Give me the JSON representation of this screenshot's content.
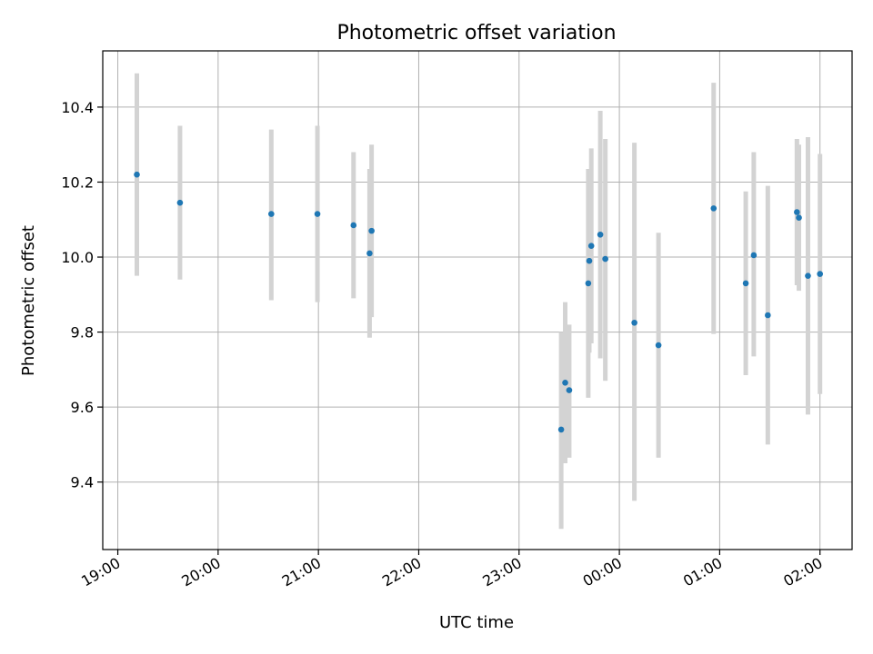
{
  "chart_data": {
    "type": "scatter",
    "title": "Photometric offset variation",
    "xlabel": "UTC time",
    "ylabel": "Photometric offset",
    "x_ticks": [
      "19:00",
      "20:00",
      "21:00",
      "22:00",
      "23:00",
      "00:00",
      "01:00",
      "02:00"
    ],
    "x_tick_hours": [
      19,
      20,
      21,
      22,
      23,
      24,
      25,
      26
    ],
    "y_ticks": [
      "9.4",
      "9.6",
      "9.8",
      "10.0",
      "10.2",
      "10.4"
    ],
    "y_tick_values": [
      9.4,
      9.6,
      9.8,
      10.0,
      10.2,
      10.4
    ],
    "xlim_hours": [
      18.85,
      26.32
    ],
    "ylim": [
      9.22,
      10.55
    ],
    "grid": true,
    "colors": {
      "points": "#1f77b4",
      "errorbars": "#d3d3d3",
      "grid": "#b0b0b0"
    },
    "points": [
      {
        "t": "19:11",
        "h": 19.19,
        "y": 10.22,
        "ylow": 9.95,
        "yhigh": 10.49
      },
      {
        "t": "19:37",
        "h": 19.62,
        "y": 10.145,
        "ylow": 9.94,
        "yhigh": 10.35
      },
      {
        "t": "20:32",
        "h": 20.53,
        "y": 10.115,
        "ylow": 9.885,
        "yhigh": 10.34
      },
      {
        "t": "20:59",
        "h": 20.99,
        "y": 10.115,
        "ylow": 9.88,
        "yhigh": 10.35
      },
      {
        "t": "21:21",
        "h": 21.35,
        "y": 10.085,
        "ylow": 9.89,
        "yhigh": 10.28
      },
      {
        "t": "21:31",
        "h": 21.51,
        "y": 10.01,
        "ylow": 9.785,
        "yhigh": 10.235
      },
      {
        "t": "21:32",
        "h": 21.53,
        "y": 10.07,
        "ylow": 9.84,
        "yhigh": 10.3
      },
      {
        "t": "23:25",
        "h": 23.42,
        "y": 9.54,
        "ylow": 9.275,
        "yhigh": 9.8
      },
      {
        "t": "23:27",
        "h": 23.46,
        "y": 9.665,
        "ylow": 9.45,
        "yhigh": 9.88
      },
      {
        "t": "23:30",
        "h": 23.5,
        "y": 9.645,
        "ylow": 9.465,
        "yhigh": 9.82
      },
      {
        "t": "23:41",
        "h": 23.69,
        "y": 9.93,
        "ylow": 9.625,
        "yhigh": 10.235
      },
      {
        "t": "23:42",
        "h": 23.7,
        "y": 9.99,
        "ylow": 9.745,
        "yhigh": 10.23
      },
      {
        "t": "23:43",
        "h": 23.72,
        "y": 10.03,
        "ylow": 9.77,
        "yhigh": 10.29
      },
      {
        "t": "23:49",
        "h": 23.81,
        "y": 10.06,
        "ylow": 9.73,
        "yhigh": 10.39
      },
      {
        "t": "23:52",
        "h": 23.86,
        "y": 9.995,
        "ylow": 9.67,
        "yhigh": 10.315
      },
      {
        "t": "00:09",
        "h": 24.15,
        "y": 9.825,
        "ylow": 9.35,
        "yhigh": 10.305
      },
      {
        "t": "00:23",
        "h": 24.39,
        "y": 9.765,
        "ylow": 9.465,
        "yhigh": 10.065
      },
      {
        "t": "00:56",
        "h": 24.94,
        "y": 10.13,
        "ylow": 9.795,
        "yhigh": 10.465
      },
      {
        "t": "01:15",
        "h": 25.26,
        "y": 9.93,
        "ylow": 9.685,
        "yhigh": 10.175
      },
      {
        "t": "01:20",
        "h": 25.34,
        "y": 10.005,
        "ylow": 9.735,
        "yhigh": 10.28
      },
      {
        "t": "01:29",
        "h": 25.48,
        "y": 9.845,
        "ylow": 9.5,
        "yhigh": 10.19
      },
      {
        "t": "01:46",
        "h": 25.77,
        "y": 10.12,
        "ylow": 9.925,
        "yhigh": 10.315
      },
      {
        "t": "01:47",
        "h": 25.79,
        "y": 10.105,
        "ylow": 9.91,
        "yhigh": 10.3
      },
      {
        "t": "01:53",
        "h": 25.88,
        "y": 9.95,
        "ylow": 9.58,
        "yhigh": 10.32
      },
      {
        "t": "02:00",
        "h": 26.0,
        "y": 9.955,
        "ylow": 9.635,
        "yhigh": 10.275
      }
    ]
  }
}
